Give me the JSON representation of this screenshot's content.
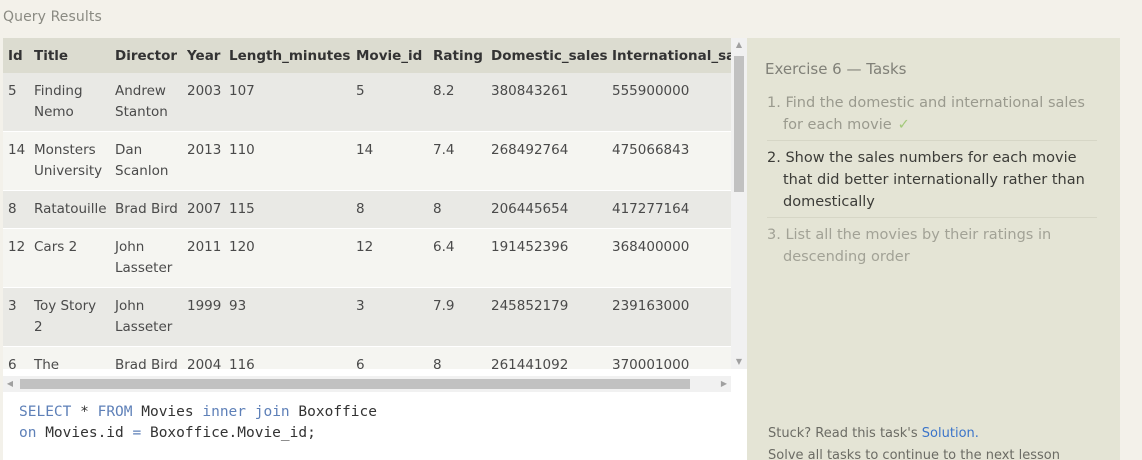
{
  "results": {
    "label": "Query Results",
    "columns": [
      "Id",
      "Title",
      "Director",
      "Year",
      "Length_minutes",
      "Movie_id",
      "Rating",
      "Domestic_sales",
      "International_sa"
    ],
    "rows": [
      [
        "5",
        "Finding Nemo",
        "Andrew Stanton",
        "2003",
        "107",
        "5",
        "8.2",
        "380843261",
        "555900000"
      ],
      [
        "14",
        "Monsters University",
        "Dan Scanlon",
        "2013",
        "110",
        "14",
        "7.4",
        "268492764",
        "475066843"
      ],
      [
        "8",
        "Ratatouille",
        "Brad Bird",
        "2007",
        "115",
        "8",
        "8",
        "206445654",
        "417277164"
      ],
      [
        "12",
        "Cars 2",
        "John Lasseter",
        "2011",
        "120",
        "12",
        "6.4",
        "191452396",
        "368400000"
      ],
      [
        "3",
        "Toy Story 2",
        "John Lasseter",
        "1999",
        "93",
        "3",
        "7.9",
        "245852179",
        "239163000"
      ],
      [
        "6",
        "The Incredibles",
        "Brad Bird",
        "2004",
        "116",
        "6",
        "8",
        "261441092",
        "370001000"
      ]
    ]
  },
  "editor": {
    "line1": {
      "kw1": "SELECT",
      "t1": " * ",
      "kw2": "FROM",
      "t2": " Movies ",
      "kw3": "inner join",
      "t3": " Boxoffice"
    },
    "line2": {
      "kw1": "on",
      "t1": " Movies.id ",
      "op": "=",
      "t2": " Boxoffice.Movie_id;"
    }
  },
  "tasks": {
    "title": "Exercise 6 — Tasks",
    "items": [
      {
        "number": "1.",
        "text": "Find the domestic and international sales for each movie",
        "status": "done",
        "check": "✓"
      },
      {
        "number": "2.",
        "text": "Show the sales numbers for each movie that did better internationally rather than domestically",
        "status": "current"
      },
      {
        "number": "3.",
        "text": "List all the movies by their ratings in descending order",
        "status": "pending"
      }
    ],
    "stuck_text": "Stuck? Read this task's ",
    "solution_link": "Solution.",
    "cut_line": "Solve all tasks to continue to the next lesson"
  }
}
